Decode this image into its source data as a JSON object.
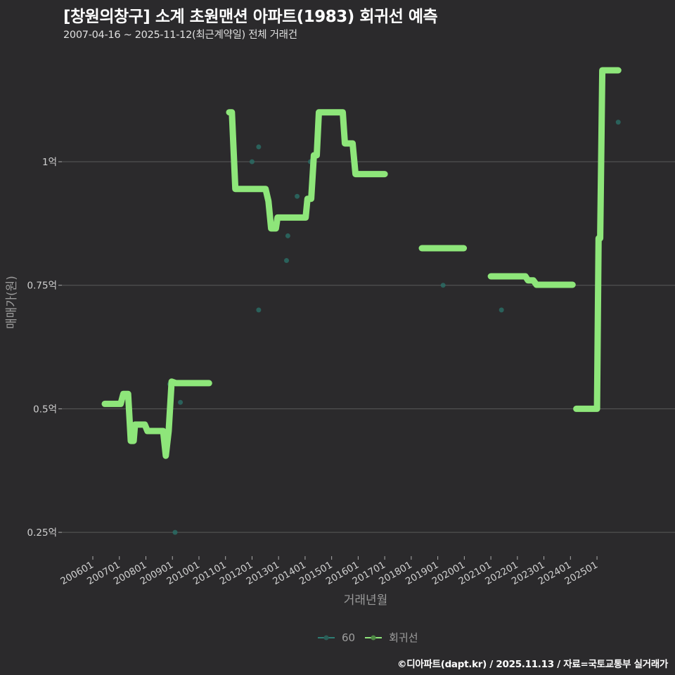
{
  "header": {
    "title": "[창원의창구] 소계 초원맨션 아파트(1983) 회귀선 예측",
    "subtitle": "2007-04-16 ~ 2025-11-12(최근계약일) 전체 거래건"
  },
  "footer": {
    "credit": "©디아파트(dapt.kr) / 2025.11.13 / 자료=국토교통부 실거래가"
  },
  "colors": {
    "background": "#2b2a2c",
    "regression": "#8ee67a",
    "scatter": "#2a6b64",
    "grid": "#5a5a5a"
  },
  "legend": [
    {
      "label": "60",
      "color": "#2e7d74"
    },
    {
      "label": "회귀선",
      "color": "#8ee67a"
    }
  ],
  "chart_data": {
    "type": "line",
    "title": "[창원의창구] 소계 초원맨션 아파트(1983) 회귀선 예측",
    "subtitle": "2007-04-16 ~ 2025-11-12(최근계약일) 전체 거래건",
    "xlabel": "거래년월",
    "ylabel": "매매가(원)",
    "x_ticks": [
      "200601",
      "200701",
      "200801",
      "200901",
      "201001",
      "201101",
      "201201",
      "201301",
      "201401",
      "201501",
      "201601",
      "201701",
      "201801",
      "201901",
      "202001",
      "202101",
      "202201",
      "202301",
      "202401",
      "202501"
    ],
    "y_ticks": [
      {
        "value": 0.25,
        "label": "0.25억"
      },
      {
        "value": 0.5,
        "label": "0.5억"
      },
      {
        "value": 0.75,
        "label": "0.75억"
      },
      {
        "value": 1.0,
        "label": "1억"
      }
    ],
    "ylim": [
      0.2,
      1.22
    ],
    "xlim": [
      2004.75,
      2026.45
    ],
    "grid": "horizontal",
    "legend_position": "bottom",
    "series": [
      {
        "name": "60",
        "type": "scatter",
        "points": [
          [
            2008.9,
            0.55
          ],
          [
            2009.3,
            0.513
          ],
          [
            2009.1,
            0.25
          ],
          [
            2012.0,
            1.0
          ],
          [
            2012.25,
            1.03
          ],
          [
            2012.25,
            0.7
          ],
          [
            2013.3,
            0.8
          ],
          [
            2013.35,
            0.85
          ],
          [
            2013.7,
            0.93
          ],
          [
            2014.2,
            1.0
          ],
          [
            2019.2,
            0.75
          ],
          [
            2021.4,
            0.7
          ],
          [
            2025.8,
            1.08
          ]
        ]
      },
      {
        "name": "회귀선",
        "type": "step-line",
        "segments": [
          [
            [
              2006.45,
              0.51
            ],
            [
              2007.05,
              0.51
            ],
            [
              2007.15,
              0.53
            ],
            [
              2007.33,
              0.53
            ],
            [
              2007.43,
              0.435
            ],
            [
              2007.54,
              0.435
            ],
            [
              2007.59,
              0.468
            ],
            [
              2007.96,
              0.468
            ],
            [
              2008.06,
              0.455
            ],
            [
              2008.65,
              0.455
            ],
            [
              2008.75,
              0.405
            ],
            [
              2008.86,
              0.455
            ],
            [
              2008.97,
              0.555
            ],
            [
              2009.13,
              0.552
            ],
            [
              2010.38,
              0.552
            ]
          ],
          [
            [
              2011.14,
              1.1
            ],
            [
              2011.24,
              1.1
            ],
            [
              2011.37,
              0.945
            ],
            [
              2012.51,
              0.945
            ],
            [
              2012.62,
              0.92
            ],
            [
              2012.72,
              0.865
            ],
            [
              2012.9,
              0.865
            ],
            [
              2012.96,
              0.887
            ],
            [
              2014.02,
              0.887
            ],
            [
              2014.09,
              0.925
            ],
            [
              2014.23,
              0.925
            ],
            [
              2014.33,
              1.013
            ],
            [
              2014.44,
              1.013
            ],
            [
              2014.52,
              1.1
            ],
            [
              2015.42,
              1.1
            ],
            [
              2015.5,
              1.037
            ],
            [
              2015.79,
              1.037
            ],
            [
              2015.9,
              0.975
            ],
            [
              2017.0,
              0.975
            ]
          ],
          [
            [
              2018.4,
              0.825
            ],
            [
              2019.98,
              0.825
            ]
          ],
          [
            [
              2021.0,
              0.768
            ],
            [
              2022.3,
              0.768
            ],
            [
              2022.4,
              0.76
            ],
            [
              2022.6,
              0.76
            ],
            [
              2022.72,
              0.751
            ],
            [
              2024.08,
              0.751
            ]
          ],
          [
            [
              2024.22,
              0.5
            ],
            [
              2025.0,
              0.5
            ],
            [
              2025.06,
              0.845
            ],
            [
              2025.12,
              0.845
            ],
            [
              2025.2,
              1.185
            ],
            [
              2025.8,
              1.185
            ]
          ]
        ]
      }
    ]
  }
}
